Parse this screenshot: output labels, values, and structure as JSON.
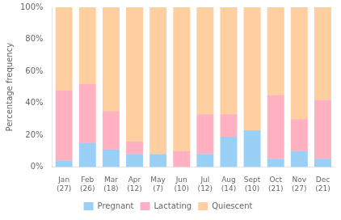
{
  "chart_data": {
    "type": "bar",
    "stacked": true,
    "categories": [
      "Jan\n(27)",
      "Feb\n(26)",
      "Mar\n(18)",
      "Apr\n(12)",
      "May\n(7)",
      "Jun\n(10)",
      "Jul\n(12)",
      "Aug\n(14)",
      "Sept\n(10)",
      "Oct\n(21)",
      "Nov\n(27)",
      "Dec\n(21)"
    ],
    "series": [
      {
        "name": "Pregnant",
        "values": [
          4,
          15,
          11,
          8,
          8,
          0,
          8,
          19,
          23,
          5,
          10,
          5
        ]
      },
      {
        "name": "Lactating",
        "values": [
          44,
          37,
          24,
          8,
          0,
          10,
          25,
          14,
          0,
          40,
          20,
          37
        ]
      },
      {
        "name": "Quiescent",
        "values": [
          52,
          48,
          65,
          84,
          92,
          90,
          67,
          67,
          77,
          55,
          70,
          58
        ]
      }
    ],
    "ylabel": "Percentage frequency",
    "ylim": [
      0,
      100
    ],
    "yticks": [
      {
        "value": 0,
        "label": "0%"
      },
      {
        "value": 20,
        "label": "20%"
      },
      {
        "value": 40,
        "label": "40%"
      },
      {
        "value": 60,
        "label": "60%"
      },
      {
        "value": 80,
        "label": "80%"
      },
      {
        "value": 100,
        "label": "100%"
      }
    ],
    "grid": false,
    "legend": "bottom"
  }
}
